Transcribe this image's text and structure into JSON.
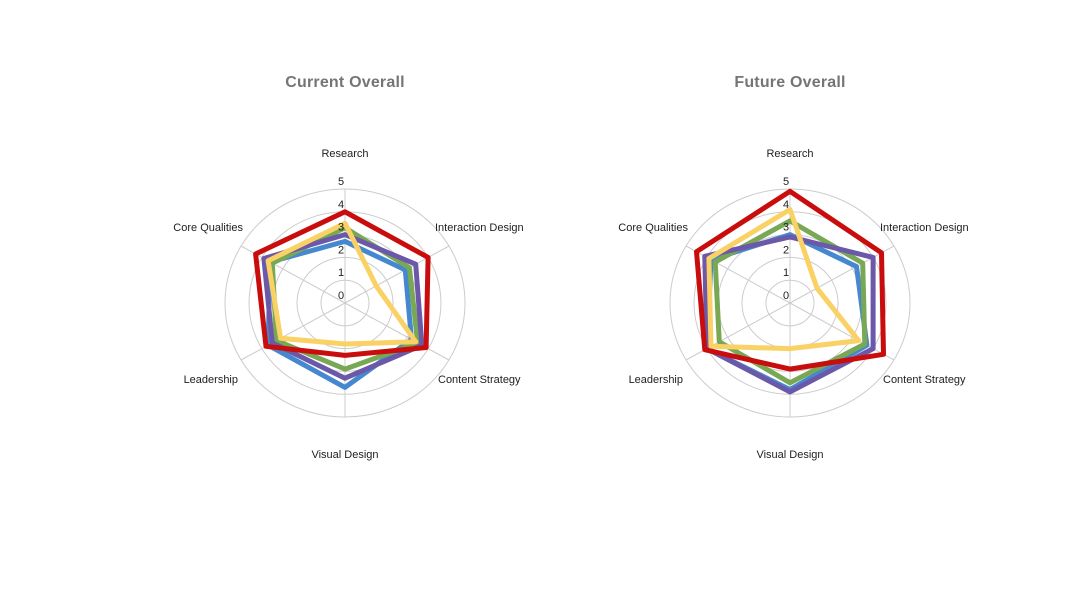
{
  "page": {
    "background": "#ffffff",
    "title_color": "#757575",
    "label_color": "#212121",
    "grid_color": "#cccccc"
  },
  "chart_data": [
    {
      "id": "current",
      "type": "radar",
      "title": "Current Overall",
      "axes": [
        "Research",
        "Interaction Design",
        "Content Strategy",
        "Visual Design",
        "Leadership",
        "Core Qualities"
      ],
      "axis_range": [
        0,
        5
      ],
      "tick_labels": [
        "0",
        "1",
        "2",
        "3",
        "4",
        "5"
      ],
      "grid": true,
      "legend": "none",
      "series": [
        {
          "name": "blue",
          "color": "#4688cf",
          "values": [
            2.7,
            2.9,
            3.2,
            3.7,
            3.7,
            3.6
          ]
        },
        {
          "name": "green",
          "color": "#79a855",
          "values": [
            3.3,
            3.1,
            3.5,
            2.9,
            3.3,
            3.5
          ]
        },
        {
          "name": "purple",
          "color": "#6c58a8",
          "values": [
            3.0,
            3.4,
            3.7,
            3.3,
            3.5,
            3.9
          ]
        },
        {
          "name": "yellow",
          "color": "#fad164",
          "values": [
            3.5,
            1.5,
            3.4,
            1.8,
            3.1,
            3.7
          ]
        },
        {
          "name": "red",
          "color": "#c90c0c",
          "values": [
            4.0,
            4.0,
            3.9,
            2.3,
            3.8,
            4.3
          ]
        }
      ]
    },
    {
      "id": "future",
      "type": "radar",
      "title": "Future Overall",
      "axes": [
        "Research",
        "Interaction Design",
        "Content Strategy",
        "Visual Design",
        "Leadership",
        "Core Qualities"
      ],
      "axis_range": [
        0,
        5
      ],
      "tick_labels": [
        "0",
        "1",
        "2",
        "3",
        "4",
        "5"
      ],
      "grid": true,
      "legend": "none",
      "series": [
        {
          "name": "blue",
          "color": "#4688cf",
          "values": [
            3.0,
            3.2,
            3.7,
            3.8,
            4.0,
            3.8
          ]
        },
        {
          "name": "green",
          "color": "#79a855",
          "values": [
            3.6,
            3.5,
            3.6,
            3.5,
            3.4,
            3.6
          ]
        },
        {
          "name": "purple",
          "color": "#6c58a8",
          "values": [
            2.9,
            4.0,
            4.0,
            3.9,
            4.0,
            4.1
          ]
        },
        {
          "name": "yellow",
          "color": "#fad164",
          "values": [
            4.1,
            1.3,
            3.3,
            2.0,
            3.8,
            3.9
          ]
        },
        {
          "name": "red",
          "color": "#c90c0c",
          "values": [
            4.9,
            4.4,
            4.5,
            2.9,
            4.1,
            4.5
          ]
        }
      ]
    }
  ]
}
